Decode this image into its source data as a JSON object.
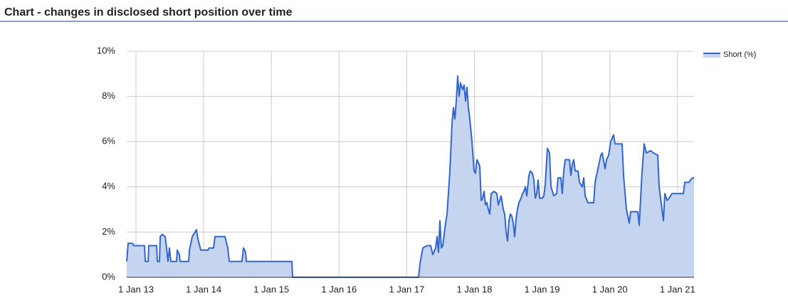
{
  "chart_data": {
    "type": "area",
    "title": "Chart - changes in disclosed short position over time",
    "x": [
      2012.863,
      2012.884,
      2012.947,
      2012.968,
      2013.126,
      2013.137,
      2013.179,
      2013.189,
      2013.305,
      2013.315,
      2013.347,
      2013.358,
      2013.389,
      2013.431,
      2013.452,
      2013.473,
      2013.494,
      2013.515,
      2013.599,
      2013.61,
      2013.641,
      2013.652,
      2013.778,
      2013.789,
      2013.81,
      2013.831,
      2013.894,
      2013.915,
      2013.957,
      2014.062,
      2014.083,
      2014.146,
      2014.167,
      2014.251,
      2014.314,
      2014.356,
      2014.377,
      2014.567,
      2014.588,
      2014.619,
      2014.63,
      2015.303,
      2015.313,
      2017.174,
      2017.195,
      2017.238,
      2017.301,
      2017.353,
      2017.385,
      2017.427,
      2017.448,
      2017.469,
      2017.49,
      2017.511,
      2017.532,
      2017.574,
      2017.595,
      2017.637,
      2017.669,
      2017.69,
      2017.711,
      2017.732,
      2017.753,
      2017.774,
      2017.795,
      2017.826,
      2017.847,
      2017.868,
      2017.89,
      2017.911,
      2017.932,
      2017.963,
      2017.995,
      2018.016,
      2018.037,
      2018.068,
      2018.079,
      2018.1,
      2018.121,
      2018.142,
      2018.163,
      2018.184,
      2018.205,
      2018.226,
      2018.247,
      2018.289,
      2018.331,
      2018.352,
      2018.394,
      2018.426,
      2018.447,
      2018.468,
      2018.489,
      2018.51,
      2018.531,
      2018.552,
      2018.573,
      2018.594,
      2018.615,
      2018.636,
      2018.657,
      2018.689,
      2018.71,
      2018.731,
      2018.752,
      2018.773,
      2018.804,
      2018.825,
      2018.857,
      2018.878,
      2018.899,
      2018.92,
      2018.941,
      2018.962,
      2019.004,
      2019.025,
      2019.046,
      2019.078,
      2019.109,
      2019.13,
      2019.151,
      2019.172,
      2019.214,
      2019.235,
      2019.277,
      2019.298,
      2019.32,
      2019.341,
      2019.404,
      2019.425,
      2019.446,
      2019.467,
      2019.488,
      2019.53,
      2019.551,
      2019.593,
      2019.614,
      2019.635,
      2019.677,
      2019.761,
      2019.782,
      2019.824,
      2019.866,
      2019.887,
      2019.93,
      2019.951,
      2019.982,
      2020.014,
      2020.056,
      2020.077,
      2020.182,
      2020.203,
      2020.245,
      2020.287,
      2020.308,
      2020.413,
      2020.434,
      2020.476,
      2020.508,
      2020.539,
      2020.603,
      2020.644,
      2020.708,
      2020.729,
      2020.771,
      2020.792,
      2020.813,
      2020.844,
      2020.876,
      2020.918,
      2021.086,
      2021.107,
      2021.17,
      2021.191,
      2021.223,
      2021.244
    ],
    "series": [
      {
        "name": "Short (%)",
        "color": "#3366cc",
        "fill": "#c5d5f0",
        "values": [
          0.7,
          1.5,
          1.5,
          1.4,
          1.4,
          0.7,
          0.7,
          1.4,
          1.4,
          0.7,
          0.7,
          1.8,
          1.9,
          1.8,
          1.3,
          0.7,
          1.3,
          0.7,
          0.7,
          1.2,
          1.0,
          0.7,
          0.7,
          1.2,
          1.5,
          1.8,
          2.1,
          1.7,
          1.2,
          1.2,
          1.3,
          1.3,
          1.8,
          1.8,
          1.8,
          1.3,
          0.7,
          0.7,
          1.3,
          1.1,
          0.7,
          0.7,
          0.0,
          0.0,
          0.6,
          1.3,
          1.4,
          1.4,
          1.0,
          1.3,
          1.8,
          1.1,
          2.5,
          1.3,
          1.4,
          2.4,
          2.8,
          4.7,
          6.8,
          7.5,
          7.0,
          7.8,
          8.9,
          8.0,
          8.6,
          8.3,
          8.5,
          7.8,
          8.4,
          7.5,
          7.0,
          6.0,
          4.7,
          4.6,
          5.2,
          5.0,
          4.9,
          3.4,
          3.5,
          3.8,
          3.2,
          3.3,
          3.0,
          2.8,
          3.7,
          3.8,
          3.7,
          3.2,
          3.6,
          3.0,
          2.8,
          2.0,
          1.6,
          2.5,
          2.8,
          2.7,
          2.4,
          1.8,
          2.6,
          3.0,
          3.3,
          3.5,
          3.7,
          3.8,
          4.0,
          3.6,
          4.5,
          4.7,
          4.6,
          4.3,
          3.5,
          3.7,
          4.3,
          3.5,
          3.5,
          3.6,
          4.1,
          5.7,
          5.5,
          4.0,
          3.8,
          3.6,
          3.7,
          4.4,
          4.4,
          3.7,
          4.7,
          5.2,
          5.2,
          4.5,
          5.0,
          5.2,
          4.7,
          4.7,
          4.2,
          4.0,
          4.4,
          3.6,
          3.3,
          3.3,
          4.2,
          4.8,
          5.4,
          5.5,
          4.8,
          5.2,
          5.4,
          6.0,
          6.3,
          5.9,
          5.9,
          4.5,
          3.0,
          2.4,
          2.9,
          2.9,
          2.3,
          4.7,
          5.9,
          5.5,
          5.6,
          5.5,
          5.4,
          4.0,
          3.0,
          2.5,
          3.7,
          3.4,
          3.5,
          3.7,
          3.7,
          4.2,
          4.2,
          4.3,
          4.4,
          4.4
        ]
      }
    ],
    "xlim": [
      2012.863,
      2021.244
    ],
    "xticks": [
      {
        "value": 2013,
        "label": "1 Jan 13"
      },
      {
        "value": 2014,
        "label": "1 Jan 14"
      },
      {
        "value": 2015,
        "label": "1 Jan 15"
      },
      {
        "value": 2016,
        "label": "1 Jan 16"
      },
      {
        "value": 2017,
        "label": "1 Jan 17"
      },
      {
        "value": 2018,
        "label": "1 Jan 18"
      },
      {
        "value": 2019,
        "label": "1 Jan 19"
      },
      {
        "value": 2020,
        "label": "1 Jan 20"
      },
      {
        "value": 2021,
        "label": "1 Jan 21"
      }
    ],
    "ylim": [
      0,
      10
    ],
    "yticks": [
      {
        "value": 0,
        "label": "0%"
      },
      {
        "value": 2,
        "label": "2%"
      },
      {
        "value": 4,
        "label": "4%"
      },
      {
        "value": 6,
        "label": "6%"
      },
      {
        "value": 8,
        "label": "8%"
      },
      {
        "value": 10,
        "label": "10%"
      }
    ],
    "grid": true,
    "legend": "right"
  }
}
